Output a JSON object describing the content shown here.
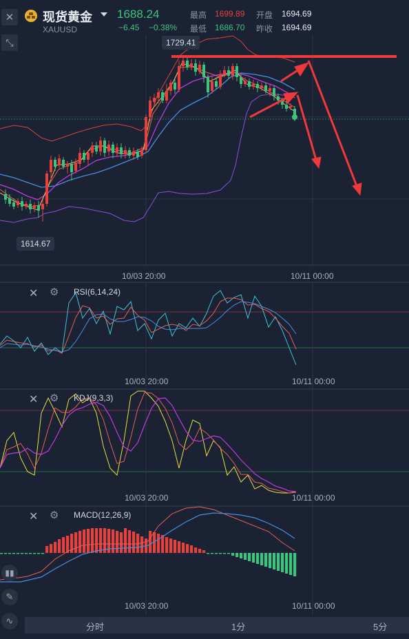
{
  "header": {
    "title": "现货黄金",
    "symbol": "XAUUSD",
    "price": "1688.24",
    "change": "−6.45",
    "change_pct": "−0.38%",
    "high_label": "最高",
    "high": "1699.89",
    "low_label": "最低",
    "low": "1686.70",
    "open_label": "开盘",
    "open": "1694.69",
    "prev_close_label": "昨收",
    "prev_close": "1694.69"
  },
  "main_chart": {
    "high_marker": "1729.41",
    "low_marker": "1614.67",
    "x_ticks": [
      "10/03 20:00",
      "10/11 00:00"
    ]
  },
  "indicators": {
    "rsi": {
      "title": "RSI(6,14,24)",
      "x_ticks": [
        "10/03 20:00",
        "10/11 00:00"
      ]
    },
    "kdj": {
      "title": "KDJ(9,3,3)",
      "x_ticks": [
        "10/03 20:00",
        "10/11 00:00"
      ]
    },
    "macd": {
      "title": "MACD(12,26,9)",
      "x_ticks": [
        "10/03 20:00",
        "10/11 00:00"
      ]
    }
  },
  "timeframes": [
    "分时",
    "1分",
    "5分"
  ],
  "colors": {
    "background": "#1b2233",
    "up": "#e6423d",
    "down": "#3ec47d",
    "annotation": "#f0393a",
    "ma_blue": "#4a8fe0",
    "ma_purple": "#b03ad8",
    "rsi_cyan": "#3fc6d8",
    "kdj_yellow": "#e8e040"
  },
  "icons": [
    "close-icon",
    "collapse-icon",
    "settings-icon",
    "chart-type-icon",
    "draw-tool-icon",
    "indicator-icon"
  ]
}
